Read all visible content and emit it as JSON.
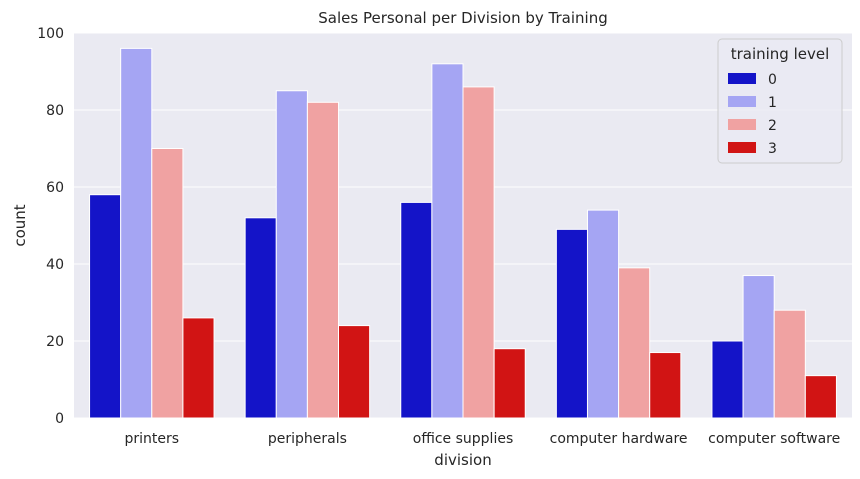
{
  "chart_data": {
    "type": "bar",
    "title": "Sales Personal per Division by Training",
    "xlabel": "division",
    "ylabel": "count",
    "categories": [
      "printers",
      "peripherals",
      "office supplies",
      "computer hardware",
      "computer software"
    ],
    "series": [
      {
        "name": "0",
        "values": [
          58,
          52,
          56,
          49,
          20
        ],
        "color": "#1414c8"
      },
      {
        "name": "1",
        "values": [
          96,
          85,
          92,
          54,
          37
        ],
        "color": "#a5a5f3"
      },
      {
        "name": "2",
        "values": [
          70,
          82,
          86,
          39,
          28
        ],
        "color": "#f0a2a2"
      },
      {
        "name": "3",
        "values": [
          26,
          24,
          18,
          17,
          11
        ],
        "color": "#d11414"
      }
    ],
    "ylim": [
      0,
      100
    ],
    "yticks": [
      0,
      20,
      40,
      60,
      80,
      100
    ],
    "grid": true,
    "legend": {
      "title": "training level",
      "position": "top-right"
    },
    "background": "#eaeaf2"
  }
}
